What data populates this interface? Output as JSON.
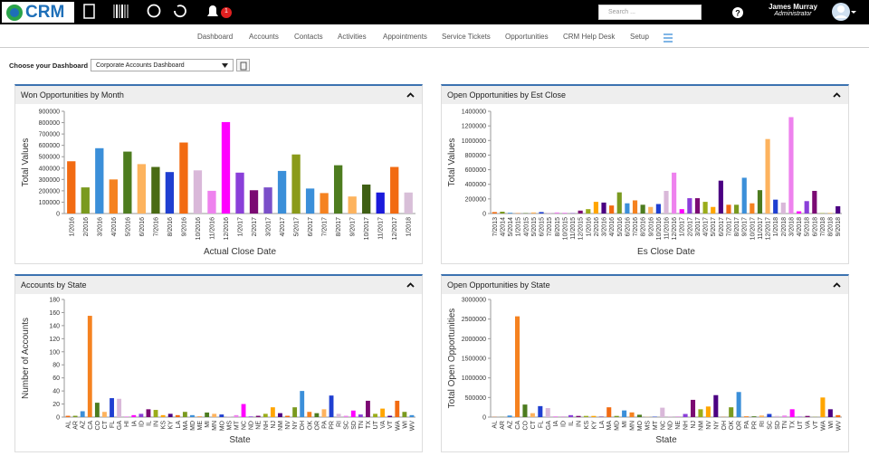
{
  "header": {
    "logo": "CRM",
    "notifications": "1",
    "search_placeholder": "Search ...",
    "user_name": "James Murray",
    "user_role": "Administrator"
  },
  "nav": [
    "Dashboard",
    "Accounts",
    "Contacts",
    "Activities",
    "Appointments",
    "Service Tickets",
    "Opportunities",
    "CRM Help Desk",
    "Setup"
  ],
  "dashboard_picker": {
    "label": "Choose your Dashboard",
    "selected": "Corporate Accounts Dashboard"
  },
  "chart_data": [
    {
      "type": "bar",
      "title": "Won Opportunities by Month",
      "x_label": "Actual Close Date",
      "y_label": "Total Values",
      "categories": [
        "1/2016",
        "2/2016",
        "3/2016",
        "4/2016",
        "5/2016",
        "6/2016",
        "7/2016",
        "8/2016",
        "9/2016",
        "10/2016",
        "11/2016",
        "12/2016",
        "1/2017",
        "2/2017",
        "3/2017",
        "4/2017",
        "5/2017",
        "6/2017",
        "7/2017",
        "8/2017",
        "9/2017",
        "10/2017",
        "11/2017",
        "12/2017",
        "1/2018"
      ],
      "values": [
        460000,
        230000,
        575000,
        300000,
        545000,
        435000,
        410000,
        365000,
        625000,
        380000,
        200000,
        805000,
        360000,
        205000,
        230000,
        375000,
        520000,
        220000,
        180000,
        425000,
        150000,
        255000,
        185000,
        410000,
        185000
      ],
      "colors": [
        "#f26b12",
        "#7a9a1f",
        "#3b8fd9",
        "#f58220",
        "#4d7c1f",
        "#fdb35e",
        "#4a6b14",
        "#1f3fd1",
        "#f26b12",
        "#d9b8d9",
        "#ee82ee",
        "#ff00ff",
        "#8a3fd9",
        "#7b0a73",
        "#7a4fc9",
        "#3b8fd9",
        "#8a9a1a",
        "#3b8fd9",
        "#f58220",
        "#4d7c1f",
        "#fdb35e",
        "#3f5f14",
        "#1a1adb",
        "#f26b12",
        "#d8bfd8"
      ],
      "ylim": [
        0,
        900000
      ],
      "yticks": [
        0,
        100000,
        200000,
        300000,
        400000,
        500000,
        600000,
        700000,
        800000,
        900000
      ],
      "grid": false
    },
    {
      "type": "bar",
      "title": "Open Opportunities by Est Close",
      "x_label": "Es Close Date",
      "y_label": "Total Values",
      "categories": [
        "7/2013",
        "4/2014",
        "5/2014",
        "1/2015",
        "4/2015",
        "5/2015",
        "6/2015",
        "7/2015",
        "8/2015",
        "10/2015",
        "11/2015",
        "12/2015",
        "1/2016",
        "2/2016",
        "3/2016",
        "4/2016",
        "5/2016",
        "6/2016",
        "7/2016",
        "8/2016",
        "9/2016",
        "10/2016",
        "11/2016",
        "12/2016",
        "1/2017",
        "2/2017",
        "3/2017",
        "4/2017",
        "5/2017",
        "6/2017",
        "7/2017",
        "8/2017",
        "9/2017",
        "10/2017",
        "11/2017",
        "12/2017",
        "1/2018",
        "2/2018",
        "3/2018",
        "4/2018",
        "5/2018",
        "6/2018",
        "7/2018",
        "8/2018",
        "9/2018"
      ],
      "values": [
        20000,
        25000,
        10000,
        5000,
        5000,
        15000,
        20000,
        10000,
        15000,
        5000,
        5000,
        40000,
        60000,
        160000,
        150000,
        110000,
        290000,
        140000,
        180000,
        120000,
        90000,
        130000,
        310000,
        560000,
        60000,
        210000,
        210000,
        160000,
        90000,
        450000,
        120000,
        120000,
        490000,
        140000,
        320000,
        1020000,
        190000,
        150000,
        1320000,
        30000,
        170000,
        310000,
        5000,
        5000,
        100000
      ],
      "palette": [
        "#f26b12",
        "#7a9a1f",
        "#3b8fd9",
        "#f58220",
        "#4d7c1f",
        "#fdb35e",
        "#1f3fd1",
        "#d9b8d9",
        "#ee82ee",
        "#ff00ff",
        "#8a3fd9",
        "#7b0a73",
        "#9aac1a",
        "#ffa500",
        "#4b0082"
      ],
      "ylim": [
        0,
        1400000
      ],
      "yticks": [
        0,
        200000,
        400000,
        600000,
        800000,
        1000000,
        1200000,
        1400000
      ],
      "grid": false
    },
    {
      "type": "bar",
      "title": "Accounts by State",
      "x_label": "State",
      "y_label": "Number of Accounts",
      "categories": [
        "AL",
        "AR",
        "AZ",
        "CA",
        "CO",
        "CT",
        "FL",
        "GA",
        "HI",
        "IA",
        "ID",
        "IL",
        "IN",
        "KS",
        "KY",
        "LA",
        "MA",
        "MD",
        "ME",
        "MI",
        "MN",
        "MO",
        "MS",
        "MT",
        "NC",
        "ND",
        "NE",
        "NH",
        "NJ",
        "NM",
        "NV",
        "NY",
        "OH",
        "OK",
        "OR",
        "PA",
        "PR",
        "RI",
        "SC",
        "SD",
        "TN",
        "TX",
        "UT",
        "VA",
        "VT",
        "WA",
        "WI",
        "WV"
      ],
      "values": [
        2,
        2,
        9,
        155,
        22,
        8,
        29,
        28,
        1,
        3,
        5,
        12,
        11,
        3,
        5,
        3,
        8,
        3,
        1,
        7,
        5,
        4,
        1,
        3,
        20,
        1,
        2,
        5,
        15,
        6,
        2,
        15,
        40,
        8,
        6,
        12,
        33,
        5,
        2,
        10,
        4,
        25,
        5,
        13,
        2,
        25,
        8,
        3
      ],
      "palette": [
        "#f26b12",
        "#7a9a1f",
        "#3b8fd9",
        "#f58220",
        "#4d7c1f",
        "#fdb35e",
        "#1f3fd1",
        "#d9b8d9",
        "#ee82ee",
        "#ff00ff",
        "#8a3fd9",
        "#7b0a73",
        "#9aac1a",
        "#ffa500",
        "#4b0082"
      ],
      "ylim": [
        0,
        180
      ],
      "yticks": [
        0,
        20,
        40,
        60,
        80,
        100,
        120,
        140,
        160,
        180
      ],
      "grid": false
    },
    {
      "type": "bar",
      "title": "Open Opportunities by State",
      "x_label": "State",
      "y_label": "Total Open Opportunities",
      "categories": [
        "AL",
        "AR",
        "AZ",
        "CA",
        "CO",
        "CT",
        "FL",
        "GA",
        "IA",
        "ID",
        "IL",
        "IN",
        "KS",
        "KY",
        "LA",
        "MA",
        "MD",
        "MI",
        "MN",
        "MO",
        "MS",
        "MT",
        "NC",
        "ND",
        "NE",
        "NH",
        "NJ",
        "NM",
        "NV",
        "NY",
        "OH",
        "OK",
        "OR",
        "PA",
        "PR",
        "RI",
        "SC",
        "SD",
        "TN",
        "TX",
        "UT",
        "VA",
        "VT",
        "WA",
        "WI",
        "WV"
      ],
      "values": [
        5000,
        5000,
        40000,
        2570000,
        320000,
        100000,
        280000,
        230000,
        20000,
        5000,
        50000,
        30000,
        30000,
        30000,
        10000,
        250000,
        30000,
        170000,
        120000,
        60000,
        5000,
        10000,
        240000,
        5000,
        5000,
        80000,
        440000,
        200000,
        270000,
        560000,
        5000,
        250000,
        640000,
        20000,
        20000,
        40000,
        80000,
        30000,
        40000,
        200000,
        10000,
        30000,
        5000,
        500000,
        200000,
        50000
      ],
      "palette": [
        "#f26b12",
        "#7a9a1f",
        "#3b8fd9",
        "#f58220",
        "#4d7c1f",
        "#fdb35e",
        "#1f3fd1",
        "#d9b8d9",
        "#ee82ee",
        "#ff00ff",
        "#8a3fd9",
        "#7b0a73",
        "#9aac1a",
        "#ffa500",
        "#4b0082"
      ],
      "ylim": [
        0,
        3000000
      ],
      "yticks": [
        0,
        500000,
        1000000,
        1500000,
        2000000,
        2500000,
        3000000
      ],
      "grid": false
    }
  ]
}
